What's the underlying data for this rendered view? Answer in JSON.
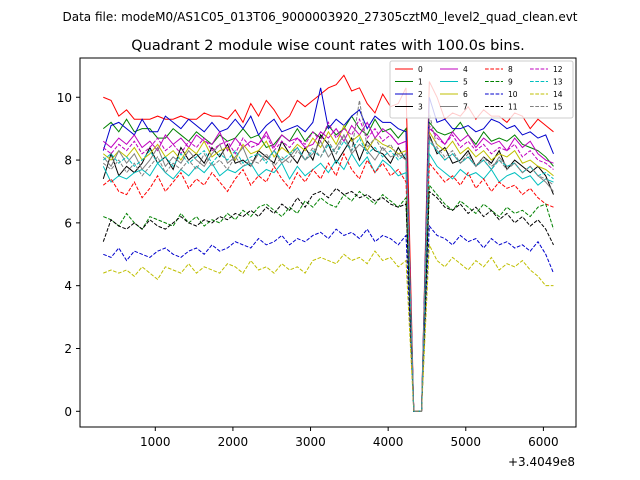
{
  "chart_data": {
    "type": "line",
    "suptitle": "Data file: modeM0/AS1C05_013T06_9000003920_27305cztM0_level2_quad_clean.evt",
    "title": "Quadrant 2 module wise count rates with 100.0s bins.",
    "xlabel": "",
    "ylabel": "",
    "x_offset_label": "+3.4049e8",
    "xlim": [
      30,
      6420
    ],
    "ylim": [
      -0.5,
      11.25
    ],
    "xticks": [
      1000,
      2000,
      3000,
      4000,
      5000,
      6000
    ],
    "yticks": [
      0,
      2,
      4,
      6,
      8,
      10
    ],
    "legend_loc": "upper right",
    "legend_ncol": 4,
    "x_start": 330,
    "x_step": 100,
    "series": [
      {
        "name": "0",
        "color": "#ff0000",
        "dash": "solid",
        "values": [
          10.0,
          9.9,
          9.4,
          9.6,
          9.3,
          9.3,
          9.3,
          9.4,
          9.3,
          9.3,
          9.4,
          9.3,
          9.3,
          9.5,
          9.4,
          9.4,
          9.3,
          9.6,
          9.2,
          9.8,
          9.4,
          9.9,
          9.6,
          9.2,
          9.4,
          9.9,
          9.7,
          9.9,
          10.1,
          10.3,
          10.4,
          10.7,
          10.2,
          10.3,
          9.8,
          9.5,
          10.1,
          9.7,
          9.8,
          10.3,
          0,
          0,
          10.5,
          10.0,
          9.3,
          9.5,
          9.4,
          9.7,
          9.3,
          9.6,
          9.4,
          9.4,
          9.2,
          9.5,
          9.4,
          9.0,
          9.3,
          9.1,
          8.9
        ]
      },
      {
        "name": "1",
        "color": "#008000",
        "dash": "solid",
        "values": [
          9.0,
          9.2,
          8.9,
          9.3,
          8.9,
          9.0,
          9.0,
          8.7,
          8.7,
          9.0,
          8.8,
          8.6,
          8.9,
          8.7,
          8.5,
          8.8,
          8.6,
          8.7,
          9.0,
          8.7,
          8.8,
          8.4,
          8.5,
          8.8,
          8.6,
          9.0,
          8.6,
          8.9,
          8.7,
          9.1,
          8.8,
          9.0,
          9.4,
          9.0,
          8.8,
          9.3,
          8.9,
          9.0,
          8.7,
          9.0,
          0,
          0,
          9.2,
          8.9,
          8.8,
          8.9,
          9.2,
          8.8,
          8.5,
          8.9,
          8.6,
          8.7,
          8.6,
          8.8,
          8.5,
          8.4,
          8.3,
          8.1,
          7.8
        ]
      },
      {
        "name": "2",
        "color": "#0000cc",
        "dash": "solid",
        "values": [
          8.3,
          9.1,
          9.2,
          9.0,
          8.8,
          9.3,
          8.9,
          8.9,
          9.4,
          9.2,
          9.0,
          9.3,
          9.1,
          8.9,
          9.2,
          8.9,
          9.0,
          9.3,
          9.0,
          9.4,
          8.8,
          9.1,
          9.3,
          8.9,
          9.0,
          9.1,
          8.9,
          9.2,
          10.3,
          9.0,
          9.3,
          9.1,
          9.4,
          9.6,
          9.0,
          9.4,
          9.2,
          9.2,
          9.0,
          8.9,
          0,
          0,
          10.0,
          9.2,
          9.3,
          9.0,
          9.0,
          9.1,
          8.9,
          9.0,
          9.3,
          9.2,
          9.0,
          9.1,
          8.8,
          8.9,
          8.7,
          8.8,
          8.2
        ]
      },
      {
        "name": "3",
        "color": "#000000",
        "dash": "solid",
        "values": [
          7.4,
          8.2,
          7.5,
          7.8,
          7.6,
          7.9,
          8.4,
          7.9,
          8.1,
          7.7,
          8.4,
          8.0,
          8.2,
          7.9,
          8.4,
          8.1,
          8.5,
          7.9,
          8.0,
          7.8,
          8.3,
          8.1,
          7.9,
          8.6,
          8.2,
          7.9,
          8.4,
          8.0,
          8.8,
          8.5,
          7.9,
          8.3,
          8.7,
          8.0,
          8.6,
          8.3,
          8.2,
          7.9,
          8.4,
          8.0,
          0,
          0,
          8.8,
          8.2,
          8.4,
          7.9,
          8.0,
          8.3,
          7.8,
          8.1,
          7.9,
          8.3,
          7.7,
          8.0,
          7.8,
          7.6,
          7.8,
          7.5,
          6.9
        ]
      },
      {
        "name": "4",
        "color": "#bf00bf",
        "dash": "solid",
        "values": [
          8.6,
          8.4,
          8.7,
          8.5,
          8.8,
          8.4,
          8.6,
          8.3,
          8.8,
          8.5,
          8.7,
          8.4,
          8.8,
          8.6,
          8.5,
          8.9,
          8.3,
          8.7,
          8.4,
          8.6,
          8.5,
          8.9,
          8.4,
          8.8,
          8.6,
          8.7,
          8.4,
          8.5,
          8.9,
          8.7,
          9.0,
          8.6,
          9.1,
          8.8,
          9.2,
          8.7,
          9.0,
          8.8,
          8.5,
          8.6,
          0,
          0,
          9.0,
          8.8,
          8.5,
          8.9,
          8.6,
          8.8,
          8.4,
          8.7,
          8.5,
          8.6,
          8.3,
          8.7,
          8.4,
          8.6,
          8.2,
          8.0,
          7.9
        ]
      },
      {
        "name": "5",
        "color": "#00bfbf",
        "dash": "solid",
        "values": [
          7.8,
          7.3,
          7.5,
          7.4,
          7.6,
          7.7,
          7.5,
          7.9,
          7.6,
          7.4,
          7.7,
          7.5,
          7.8,
          7.6,
          7.9,
          7.5,
          7.7,
          7.6,
          7.8,
          7.9,
          7.5,
          7.7,
          7.6,
          7.9,
          7.4,
          7.8,
          7.5,
          7.7,
          7.9,
          7.6,
          8.0,
          7.7,
          8.2,
          7.8,
          8.1,
          7.6,
          8.0,
          7.8,
          7.5,
          7.6,
          0,
          0,
          8.2,
          7.8,
          7.6,
          7.4,
          7.7,
          7.5,
          7.6,
          7.4,
          7.7,
          7.3,
          7.5,
          7.6,
          7.4,
          7.5,
          7.2,
          7.4,
          7.3
        ]
      },
      {
        "name": "6",
        "color": "#bfbf00",
        "dash": "solid",
        "values": [
          8.2,
          8.0,
          8.3,
          8.1,
          8.4,
          8.0,
          8.2,
          8.5,
          8.1,
          8.3,
          8.0,
          8.4,
          8.2,
          8.6,
          8.1,
          8.3,
          8.4,
          8.0,
          8.5,
          8.2,
          8.3,
          8.6,
          8.1,
          8.4,
          8.2,
          8.5,
          8.3,
          8.7,
          8.4,
          8.9,
          8.5,
          9.1,
          8.6,
          8.8,
          8.3,
          8.7,
          8.5,
          8.4,
          8.2,
          8.3,
          0,
          0,
          8.9,
          8.5,
          8.3,
          8.6,
          8.2,
          8.4,
          8.1,
          8.3,
          8.0,
          8.2,
          8.1,
          8.3,
          7.9,
          8.0,
          7.8,
          7.7,
          7.5
        ]
      },
      {
        "name": "7",
        "color": "#808080",
        "dash": "solid",
        "values": [
          8.1,
          7.8,
          8.3,
          7.9,
          8.2,
          7.7,
          8.0,
          8.4,
          7.8,
          8.1,
          7.9,
          8.3,
          8.0,
          7.8,
          8.2,
          8.5,
          7.9,
          8.1,
          8.4,
          7.8,
          8.2,
          8.0,
          8.3,
          7.9,
          8.1,
          8.4,
          8.0,
          8.2,
          8.6,
          8.1,
          8.4,
          8.8,
          8.2,
          8.5,
          8.3,
          8.0,
          8.4,
          8.1,
          8.2,
          8.0,
          0,
          0,
          8.7,
          8.3,
          8.0,
          8.2,
          7.9,
          8.1,
          7.8,
          8.0,
          7.7,
          8.1,
          7.8,
          7.9,
          7.6,
          7.8,
          7.5,
          7.3,
          7.0
        ]
      },
      {
        "name": "8",
        "color": "#ff0000",
        "dash": "dashed",
        "values": [
          7.2,
          7.4,
          7.0,
          6.9,
          7.3,
          6.8,
          7.1,
          7.5,
          7.0,
          7.3,
          7.6,
          7.1,
          7.4,
          7.2,
          7.6,
          7.3,
          7.0,
          7.4,
          7.7,
          7.2,
          7.5,
          7.3,
          7.8,
          7.4,
          7.1,
          7.6,
          7.3,
          7.7,
          7.4,
          7.9,
          7.5,
          8.2,
          7.7,
          7.4,
          8.0,
          7.6,
          7.9,
          7.5,
          7.7,
          7.3,
          0,
          0,
          7.9,
          7.6,
          7.3,
          7.5,
          7.2,
          7.6,
          7.1,
          7.4,
          7.0,
          7.3,
          7.1,
          7.2,
          6.9,
          7.1,
          6.8,
          6.6,
          6.5
        ]
      },
      {
        "name": "9",
        "color": "#008000",
        "dash": "dashed",
        "values": [
          6.2,
          6.1,
          5.9,
          6.3,
          6.0,
          5.8,
          6.2,
          6.1,
          6.0,
          5.9,
          6.3,
          6.0,
          6.2,
          5.9,
          6.1,
          6.0,
          6.3,
          6.1,
          6.4,
          6.2,
          6.5,
          6.6,
          6.4,
          6.2,
          6.5,
          6.3,
          6.7,
          6.5,
          6.8,
          6.6,
          6.5,
          6.9,
          6.7,
          7.0,
          6.8,
          6.6,
          6.9,
          6.7,
          6.5,
          6.8,
          0,
          0,
          7.2,
          6.9,
          6.6,
          6.4,
          6.7,
          6.5,
          6.3,
          6.6,
          6.4,
          6.2,
          6.5,
          6.3,
          6.4,
          6.2,
          6.5,
          6.6,
          5.8
        ]
      },
      {
        "name": "10",
        "color": "#0000cc",
        "dash": "dashed",
        "values": [
          5.0,
          4.9,
          5.2,
          4.8,
          5.1,
          5.0,
          4.9,
          5.1,
          5.2,
          5.0,
          4.9,
          5.1,
          5.2,
          5.0,
          5.3,
          5.1,
          5.2,
          5.4,
          5.3,
          5.2,
          5.5,
          5.3,
          5.4,
          5.6,
          5.3,
          5.5,
          5.4,
          5.6,
          5.7,
          5.5,
          5.8,
          5.6,
          5.7,
          5.5,
          5.8,
          5.4,
          5.6,
          5.5,
          5.3,
          5.6,
          0,
          0,
          5.9,
          5.6,
          5.5,
          5.3,
          5.6,
          5.4,
          5.5,
          5.2,
          5.5,
          5.3,
          5.4,
          5.2,
          5.3,
          5.1,
          5.4,
          5.0,
          4.4
        ]
      },
      {
        "name": "11",
        "color": "#000000",
        "dash": "dashed",
        "values": [
          5.4,
          6.1,
          5.9,
          5.8,
          6.0,
          5.8,
          6.1,
          5.9,
          5.8,
          6.0,
          6.2,
          6.0,
          5.9,
          6.1,
          6.0,
          6.2,
          6.1,
          6.3,
          6.2,
          6.4,
          6.2,
          6.5,
          6.3,
          6.6,
          6.4,
          6.8,
          6.5,
          6.9,
          7.0,
          6.8,
          7.1,
          6.9,
          7.0,
          6.8,
          6.9,
          6.7,
          6.8,
          6.6,
          6.5,
          6.6,
          0,
          0,
          7.0,
          6.8,
          6.5,
          6.4,
          6.6,
          6.3,
          6.5,
          6.2,
          6.4,
          6.1,
          6.3,
          6.0,
          6.2,
          5.9,
          6.1,
          5.8,
          5.3
        ]
      },
      {
        "name": "12",
        "color": "#bf00bf",
        "dash": "dashed",
        "values": [
          8.4,
          8.2,
          8.5,
          8.3,
          8.6,
          8.2,
          8.4,
          8.7,
          8.3,
          8.5,
          8.2,
          8.6,
          8.4,
          8.7,
          8.3,
          8.5,
          8.6,
          8.2,
          8.7,
          8.4,
          8.5,
          8.8,
          8.3,
          8.6,
          8.4,
          8.7,
          8.5,
          8.9,
          8.6,
          9.2,
          8.7,
          9.0,
          8.8,
          9.3,
          8.7,
          9.0,
          8.6,
          8.8,
          8.5,
          8.6,
          0,
          0,
          9.1,
          8.7,
          8.5,
          8.8,
          8.4,
          8.6,
          8.3,
          8.5,
          8.2,
          8.4,
          8.3,
          8.5,
          8.1,
          8.3,
          8.0,
          7.9,
          7.7
        ]
      },
      {
        "name": "13",
        "color": "#00bfbf",
        "dash": "dashed",
        "values": [
          8.0,
          8.2,
          7.9,
          8.1,
          7.8,
          8.0,
          8.3,
          7.9,
          8.1,
          7.8,
          8.2,
          7.9,
          8.1,
          8.3,
          7.9,
          8.2,
          8.0,
          8.3,
          7.9,
          8.1,
          8.2,
          7.9,
          8.3,
          8.0,
          8.2,
          8.4,
          8.0,
          8.3,
          8.1,
          8.5,
          8.2,
          8.6,
          8.3,
          8.7,
          8.2,
          8.4,
          8.1,
          8.3,
          8.0,
          8.2,
          0,
          0,
          8.6,
          8.3,
          8.0,
          8.2,
          7.9,
          8.1,
          7.8,
          8.0,
          7.7,
          8.0,
          7.8,
          7.9,
          7.6,
          7.8,
          7.5,
          7.6,
          7.4
        ]
      },
      {
        "name": "14",
        "color": "#bfbf00",
        "dash": "dashed",
        "values": [
          4.4,
          4.5,
          4.4,
          4.5,
          4.3,
          4.6,
          4.4,
          4.2,
          4.6,
          4.5,
          4.4,
          4.7,
          4.4,
          4.6,
          4.5,
          4.4,
          4.7,
          4.6,
          4.4,
          4.8,
          4.5,
          4.6,
          4.4,
          4.7,
          4.5,
          4.6,
          4.4,
          4.8,
          4.9,
          4.8,
          4.7,
          5.0,
          4.8,
          4.9,
          4.7,
          5.1,
          4.8,
          4.9,
          4.6,
          4.8,
          0,
          0,
          5.3,
          4.8,
          4.6,
          4.9,
          4.7,
          4.5,
          4.8,
          4.6,
          4.9,
          4.5,
          4.7,
          4.6,
          4.8,
          4.5,
          4.3,
          4.0,
          4.0
        ]
      },
      {
        "name": "15",
        "color": "#808080",
        "dash": "dashed",
        "values": [
          7.9,
          7.7,
          8.0,
          7.6,
          7.9,
          7.5,
          7.8,
          8.1,
          7.6,
          7.9,
          7.7,
          8.0,
          7.7,
          8.2,
          7.8,
          8.0,
          7.7,
          8.1,
          7.8,
          8.0,
          7.9,
          8.2,
          7.8,
          8.1,
          7.9,
          8.3,
          8.0,
          8.4,
          8.1,
          8.6,
          8.2,
          8.8,
          8.3,
          9.9,
          8.4,
          8.7,
          8.3,
          8.5,
          8.1,
          8.2,
          0,
          0,
          9.5,
          8.4,
          8.1,
          8.3,
          7.9,
          8.2,
          7.8,
          8.1,
          7.8,
          8.0,
          7.7,
          7.9,
          7.6,
          7.8,
          7.5,
          7.4,
          7.2
        ]
      }
    ]
  }
}
